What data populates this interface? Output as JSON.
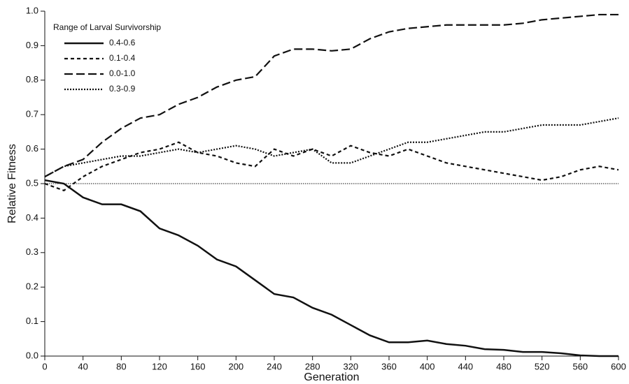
{
  "chart_data": {
    "type": "line",
    "xlabel": "Generation",
    "ylabel": "Relative Fitness",
    "legend_title": "Range of Larval Survivorship",
    "legend": "upper left",
    "x": [
      0,
      20,
      40,
      60,
      80,
      100,
      120,
      140,
      160,
      180,
      200,
      220,
      240,
      260,
      280,
      300,
      320,
      340,
      360,
      380,
      400,
      420,
      440,
      460,
      480,
      500,
      520,
      540,
      560,
      580,
      600
    ],
    "series": [
      {
        "name": "0.4-0.6",
        "color": "#111111",
        "dash": "solid",
        "values": [
          0.51,
          0.5,
          0.46,
          0.44,
          0.44,
          0.42,
          0.37,
          0.35,
          0.32,
          0.28,
          0.26,
          0.22,
          0.18,
          0.17,
          0.14,
          0.12,
          0.09,
          0.06,
          0.04,
          0.04,
          0.045,
          0.035,
          0.03,
          0.02,
          0.018,
          0.012,
          0.012,
          0.008,
          0.002,
          0.0,
          0.0
        ]
      },
      {
        "name": "0.1-0.4",
        "color": "#111111",
        "dash": "short",
        "values": [
          0.5,
          0.48,
          0.52,
          0.55,
          0.57,
          0.59,
          0.6,
          0.62,
          0.59,
          0.58,
          0.56,
          0.55,
          0.6,
          0.58,
          0.6,
          0.58,
          0.61,
          0.59,
          0.58,
          0.6,
          0.58,
          0.56,
          0.55,
          0.54,
          0.53,
          0.52,
          0.51,
          0.52,
          0.54,
          0.55,
          0.54
        ]
      },
      {
        "name": "0.0-1.0",
        "color": "#111111",
        "dash": "long",
        "values": [
          0.52,
          0.55,
          0.57,
          0.62,
          0.66,
          0.69,
          0.7,
          0.73,
          0.75,
          0.78,
          0.8,
          0.81,
          0.87,
          0.89,
          0.89,
          0.885,
          0.89,
          0.92,
          0.94,
          0.95,
          0.955,
          0.96,
          0.96,
          0.96,
          0.96,
          0.965,
          0.975,
          0.98,
          0.985,
          0.99,
          0.99
        ]
      },
      {
        "name": "0.3-0.9",
        "color": "#111111",
        "dash": "dotted",
        "values": [
          0.52,
          0.55,
          0.56,
          0.57,
          0.58,
          0.58,
          0.59,
          0.6,
          0.59,
          0.6,
          0.61,
          0.6,
          0.58,
          0.59,
          0.6,
          0.56,
          0.56,
          0.58,
          0.6,
          0.62,
          0.62,
          0.63,
          0.64,
          0.65,
          0.65,
          0.66,
          0.67,
          0.67,
          0.67,
          0.68,
          0.69
        ]
      }
    ],
    "hline": 0.5,
    "xlim": [
      0,
      600
    ],
    "xticks": [
      0,
      40,
      80,
      120,
      160,
      200,
      240,
      280,
      320,
      360,
      400,
      440,
      480,
      520,
      560,
      600
    ],
    "ylim": [
      0,
      1
    ],
    "yticks": [
      {
        "value": 0,
        "label": "0.0"
      },
      0.1,
      0.2,
      0.3,
      0.4,
      0.5,
      0.6,
      0.7,
      0.8,
      0.9,
      {
        "value": 1,
        "label": "1.0"
      }
    ],
    "grid": false
  }
}
